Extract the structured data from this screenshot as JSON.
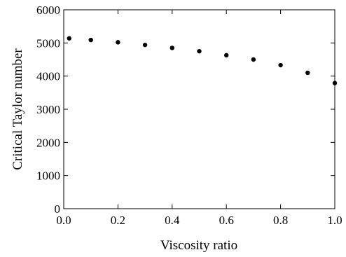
{
  "chart_data": {
    "type": "scatter",
    "xlabel": "Viscosity ratio",
    "ylabel": "Critical Taylor number",
    "xlim": [
      0,
      1
    ],
    "ylim": [
      0,
      6000
    ],
    "xticks": [
      "0.0",
      "0.2",
      "0.4",
      "0.6",
      "0.8",
      "1.0"
    ],
    "yticks": [
      "0",
      "1000",
      "2000",
      "3000",
      "4000",
      "5000",
      "6000"
    ],
    "grid": false,
    "marker_color": "#000000",
    "series": [
      {
        "x": [
          0.02,
          0.1,
          0.2,
          0.3,
          0.4,
          0.5,
          0.6,
          0.7,
          0.8,
          0.9,
          1.0
        ],
        "y": [
          5140,
          5090,
          5020,
          4940,
          4850,
          4750,
          4630,
          4500,
          4330,
          4100,
          3790
        ]
      }
    ]
  }
}
